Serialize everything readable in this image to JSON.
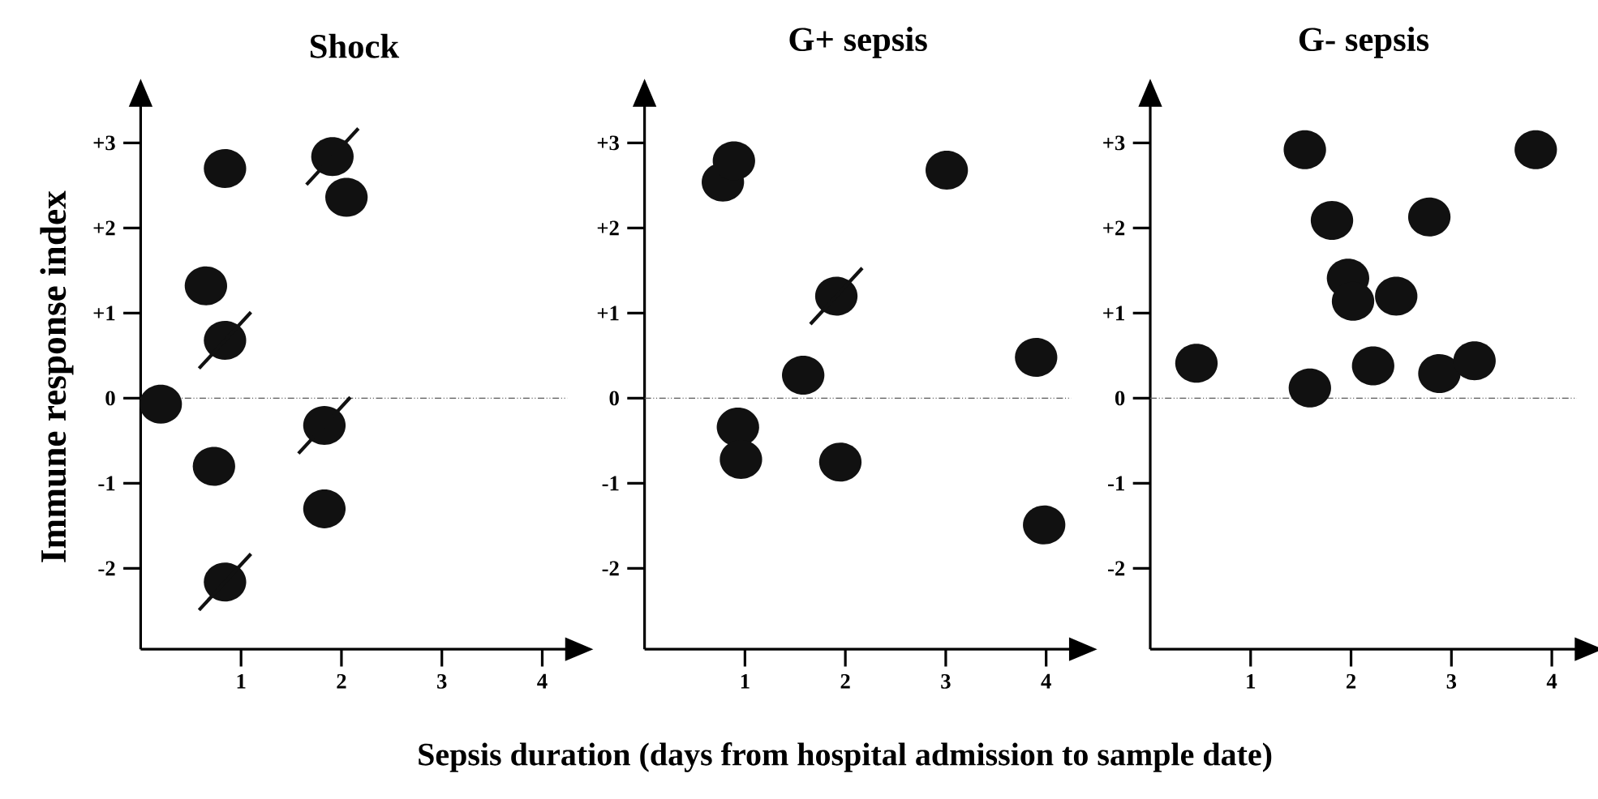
{
  "chart_data": [
    {
      "type": "scatter",
      "title": "Shock",
      "ylabel": "Immune response index",
      "xlim": [
        0,
        4.25
      ],
      "ylim": [
        -2.95,
        3.45
      ],
      "xticks": [
        1,
        2,
        3,
        4
      ],
      "yticks": [
        {
          "value": 3,
          "label": "+3"
        },
        {
          "value": 2,
          "label": "+2"
        },
        {
          "value": 1,
          "label": "+1"
        },
        0,
        -1,
        -2
      ],
      "ref_lines": [
        {
          "axis": "y",
          "value": 0,
          "line_style": "dotted"
        }
      ],
      "series": [
        {
          "color": "#111111",
          "marker": "circle",
          "x": [
            0.84,
            2.05,
            0.65,
            0.2,
            0.73,
            1.83
          ],
          "values": [
            2.7,
            2.36,
            1.32,
            -0.07,
            -0.8,
            -1.3
          ]
        },
        {
          "color": "#111111",
          "marker": "cross",
          "x": [
            1.91,
            0.84,
            1.83,
            0.84
          ],
          "values": [
            2.84,
            0.68,
            -0.32,
            -2.16
          ]
        }
      ]
    },
    {
      "type": "scatter",
      "title": "G+ sepsis",
      "xlabel": "Sepsis duration (days from hospital admission to sample date)",
      "xlim": [
        0,
        4.25
      ],
      "ylim": [
        -2.95,
        3.45
      ],
      "xticks": [
        1,
        2,
        3,
        4
      ],
      "yticks": [
        {
          "value": 3,
          "label": "+3"
        },
        {
          "value": 2,
          "label": "+2"
        },
        {
          "value": 1,
          "label": "+1"
        },
        0,
        -1,
        -2
      ],
      "ref_lines": [
        {
          "axis": "y",
          "value": 0,
          "line_style": "dotted"
        }
      ],
      "series": [
        {
          "color": "#111111",
          "marker": "circle",
          "x": [
            0.78,
            0.89,
            3.01,
            1.58,
            3.9,
            0.93,
            0.96,
            1.95,
            3.98
          ],
          "values": [
            2.54,
            2.79,
            2.68,
            0.27,
            0.48,
            -0.34,
            -0.72,
            -0.75,
            -1.49
          ]
        },
        {
          "color": "#111111",
          "marker": "cross",
          "x": [
            1.91
          ],
          "values": [
            1.2
          ]
        }
      ]
    },
    {
      "type": "scatter",
      "title": "G- sepsis",
      "xlim": [
        0,
        4.25
      ],
      "ylim": [
        -2.95,
        3.45
      ],
      "xticks": [
        1,
        2,
        3,
        4
      ],
      "yticks": [
        {
          "value": 3,
          "label": "+3"
        },
        {
          "value": 2,
          "label": "+2"
        },
        {
          "value": 1,
          "label": "+1"
        },
        0,
        -1,
        -2
      ],
      "ref_lines": [
        {
          "axis": "y",
          "value": 0,
          "line_style": "dotted"
        }
      ],
      "series": [
        {
          "color": "#111111",
          "marker": "circle",
          "x": [
            1.54,
            3.84,
            1.81,
            2.78,
            1.97,
            2.02,
            2.45,
            0.46,
            1.59,
            2.22,
            2.88,
            3.23
          ],
          "values": [
            2.92,
            2.92,
            2.09,
            2.13,
            1.41,
            1.14,
            1.2,
            0.41,
            0.12,
            0.38,
            0.29,
            0.44
          ]
        }
      ]
    }
  ]
}
